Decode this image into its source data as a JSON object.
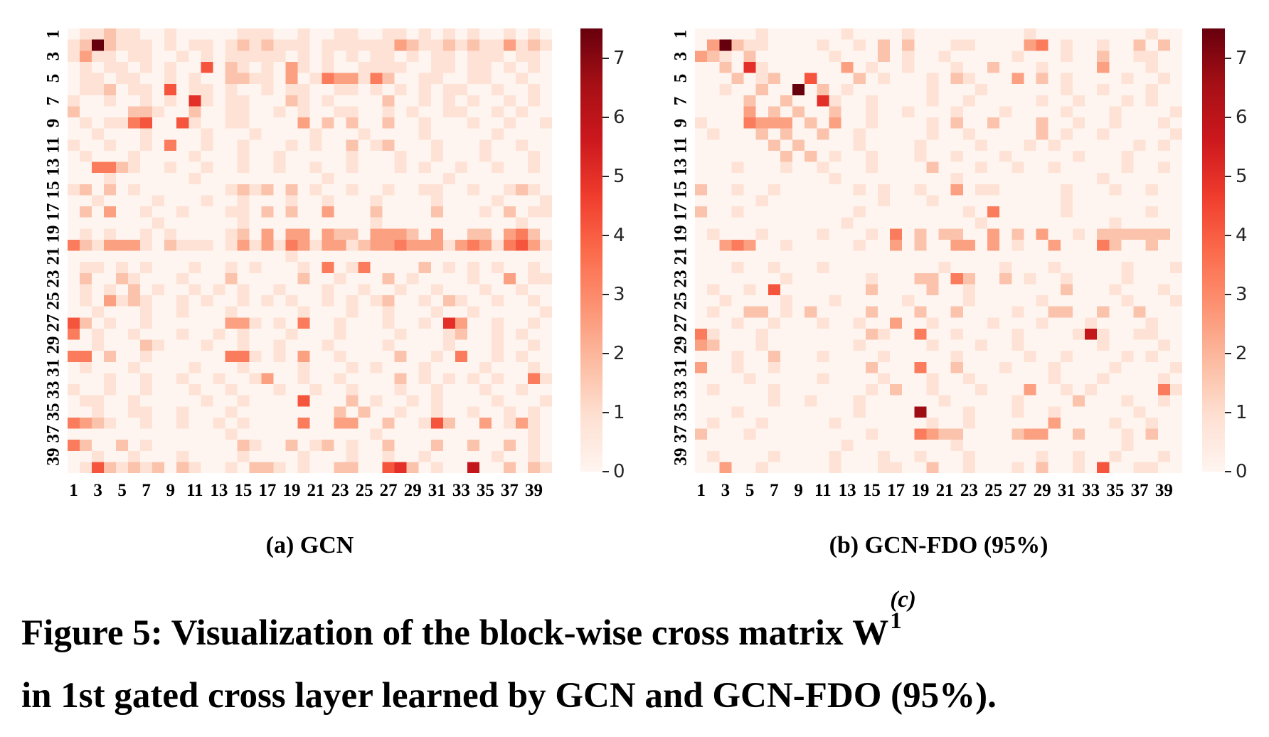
{
  "figure": {
    "caption_prefix": "Figure 5: Visualization of the block-wise cross matrix",
    "matrix_symbol": "W",
    "matrix_sup": "(c)",
    "matrix_sub": "1",
    "caption_line2": "in 1st gated cross layer learned by GCN and GCN-FDO (95%).",
    "subcaption_a": "(a) GCN",
    "subcaption_b": "(b) GCN-FDO (95%)"
  },
  "colors": {
    "background": "#ffffff",
    "text": "#000000",
    "colorbar_label_text": "#262626",
    "colormap_name": "Reds",
    "colormap_stops": [
      "#fff5f0",
      "#fee0d2",
      "#fcbba1",
      "#fc9272",
      "#fb6a4a",
      "#ef3b2c",
      "#cb181d",
      "#a50f15",
      "#67000d"
    ]
  },
  "chart_data": [
    {
      "type": "heatmap",
      "name": "GCN",
      "subcaption": "(a) GCN",
      "rows": 40,
      "cols": 40,
      "x_ticks": [
        "1",
        "3",
        "5",
        "7",
        "9",
        "11",
        "13",
        "15",
        "17",
        "19",
        "21",
        "23",
        "25",
        "27",
        "29",
        "31",
        "33",
        "35",
        "37",
        "39"
      ],
      "y_ticks": [
        "1",
        "3",
        "5",
        "7",
        "9",
        "11",
        "13",
        "15",
        "17",
        "19",
        "21",
        "23",
        "25",
        "27",
        "29",
        "31",
        "33",
        "35",
        "37",
        "39"
      ],
      "colorbar_ticks": [
        "7",
        "6",
        "5",
        "4",
        "3",
        "2",
        "1",
        "0"
      ],
      "vmin": 0,
      "vmax": 7.5,
      "value_encoding": "each character is a digit 0-9; cell value = digit * 0.833 (approx, range 0-7.5)",
      "values_quantized": [
        "0112110010000011100100110011010101001010",
        "1292111010110121211101111113211212113121",
        "1311011001010111110101010110101101110110",
        "0101101010050210103101001111001101101010",
        "0110110010100221103014331420011001100100",
        "0112011050110100101100110101010110010010",
        "1001001010610110002101000020010101001010",
        "2000022100200110010100110010100110010100",
        "0101145005100110000302020020010001001001",
        "0010001000010001000010001000010000010000",
        "1001001040010010001010020120001000100100",
        "0100010000100010010000010001001000100010",
        "0044210010010010010010010001010010010010",
        "0001000000100000000001000000000100000000",
        "1202010000000121202010010010011001001210",
        "0010000100010010001001000100001000010001",
        "0203001001000110202003000200002000102011",
        "0000000100000010000000000100000000000100",
        "0101001010000120303303220333203002203420",
        "4213331021110131314313312334333134314531",
        "0000000000000000001000000000000000000000",
        "0110101000100101000104014000020101010010",
        "0200210001000200000200100020100001003011",
        "0101020100101010010001001001001000100100",
        "0103121001010010101001010120010210010010",
        "0010001001000100000100010010001001000001",
        "5201001000000331010400100010010630010010",
        "4010010001001010001000100001000120010100",
        "0010002100010010010001000010000100010010",
        "4402001000000441010300100002001040010100",
        "0100010000100010000100010100010000100010",
        "0001001001001001300100100002010101010041",
        "1001001000100100010010010001001000100100",
        "0110010000010010000500020100101000010001",
        "0010011001000100000000202001001001001010",
        "4321001001001010000400330020015200301310",
        "0000000000000100000000000100000000000010",
        "4200201000000021002012010020002002002010",
        "0010010001000010000100010010010000010010",
        "0152121202100102210100220056201007002021"
      ]
    },
    {
      "type": "heatmap",
      "name": "GCN-FDO (95%)",
      "subcaption": "(b) GCN-FDO (95%)",
      "rows": 40,
      "cols": 40,
      "x_ticks": [
        "1",
        "3",
        "5",
        "7",
        "9",
        "11",
        "13",
        "15",
        "17",
        "19",
        "21",
        "23",
        "25",
        "27",
        "29",
        "31",
        "33",
        "35",
        "37",
        "39"
      ],
      "y_ticks": [
        "1",
        "3",
        "5",
        "7",
        "9",
        "11",
        "13",
        "15",
        "17",
        "19",
        "21",
        "23",
        "25",
        "27",
        "29",
        "31",
        "33",
        "35",
        "37",
        "39"
      ],
      "colorbar_ticks": [
        "7",
        "6",
        "5",
        "4",
        "3",
        "2",
        "1",
        "0"
      ],
      "vmin": 0,
      "vmax": 7.5,
      "value_encoding": "each character is a digit 0-9; cell value = digit * 0.833 (approx, range 0-7.5)",
      "values_quantized": [
        "0000010000001000010000000001000000000100",
        "0392110000100102020001100003401001002020",
        "3210200000010002010010000010001002001100",
        "0020610000003010010001002000100003000100",
        "0002012005000201000102100030201000010010",
        "0010020090201000000100010000001001000100",
        "0000200200610010000100100000100100010100",
        "0000302020020010010001000100001000100001",
        "1000433302030010000102002000200100100010",
        "0100020200200100000100100000201001000001",
        "0000002020000100001000010001010000001010",
        "0000000202010010001001000100000100010000",
        "0001000100100010000200010010010000010010",
        "0000000000010000000001000000000001000000",
        "2001001000000101001003011000001000100100",
        "0000010000000001000100000000001000000000",
        "2001000000000100000000104000001000000100",
        "0000000000001000000000010000000000100000",
        "0100010000100010402022003020300102222220",
        "0034300100000100302003303010030004200200",
        "0000000000000000000000000000000000000000",
        "0001001000100000000010000100010000010001",
        "0000000100000010002204200201001000010000",
        "0100105000000020000200100000002000100010",
        "0010000100010000010000100000100000010001",
        "0100220102000020002002000010022002002000",
        "0001001000100100300100001000100010000100",
        "4100010000000021004001000010000171001100",
        "3200010000000100000100010010000001000010",
        "0001002000100001000001000001001000010100",
        "3001001000000020004002000100010000100001",
        "0000100000100001000100100000010001000010",
        "0100001000000010200100010003001010000041",
        "0000001001000100000010000010000200010010",
        "0001000000000100008000100010010000001000",
        "0100010000010000000100100000030000100100",
        "2000100000000010004322000023300200010200",
        "0000000000001000000001000000000000010000",
        "0100001000010001001000100000100100100010",
        "0030010000010001100200100010200105001100"
      ]
    }
  ]
}
